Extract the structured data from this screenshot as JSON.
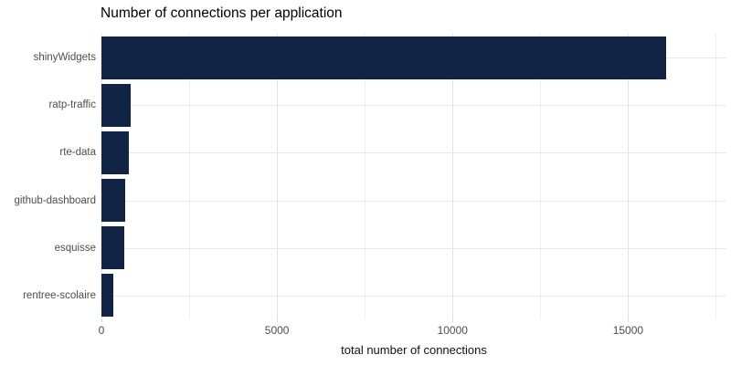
{
  "title": "Number of connections per application",
  "colors": {
    "bar_fill": "#112446",
    "grid_major": "#e2e2e2",
    "grid_minor": "#f0f0f0",
    "axis_text": "#4d4d4d",
    "title_text": "#000000"
  },
  "chart_data": {
    "type": "bar",
    "orientation": "horizontal",
    "title": "Number of connections per application",
    "xlabel": "total number of connections",
    "ylabel": "",
    "categories": [
      "shinyWidgets",
      "ratp-traffic",
      "rte-data",
      "github-dashboard",
      "esquisse",
      "rentree-scolaire"
    ],
    "values": [
      16090,
      825,
      770,
      670,
      640,
      330
    ],
    "x_ticks": [
      0,
      5000,
      10000,
      15000
    ],
    "x_tick_labels": [
      "0",
      "5000",
      "10000",
      "15000"
    ],
    "x_minor_ticks": [
      2500,
      7500,
      12500,
      17500
    ],
    "xlim": [
      0,
      17800
    ],
    "grid": "major-and-minor",
    "legend": false,
    "bar_color": "#112446"
  }
}
